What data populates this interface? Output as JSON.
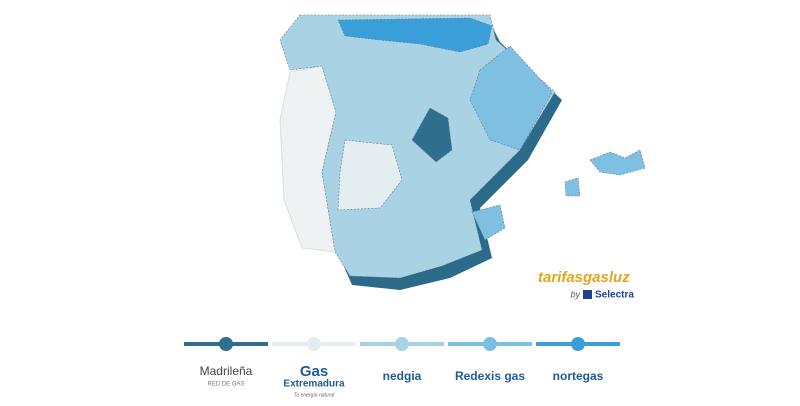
{
  "brand": {
    "name": "tarifasgasluz",
    "by": "by",
    "company": "Selectra"
  },
  "legend": [
    {
      "name": "Madrileña",
      "sub": "RED DE GAS",
      "color": "#2f6e8c"
    },
    {
      "name": "Gas",
      "sub": "Extremadura",
      "tagline": "Tu energía natural",
      "color": "#e4eef0"
    },
    {
      "name": "nedgia",
      "color": "#a9d3e4"
    },
    {
      "name": "Redexis gas",
      "color": "#7fbfe2"
    },
    {
      "name": "nortegas",
      "color": "#3a9fd8"
    }
  ]
}
